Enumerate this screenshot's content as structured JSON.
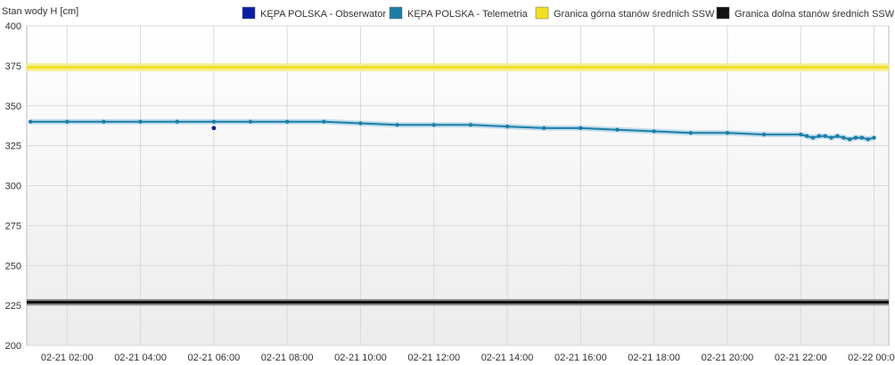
{
  "chart_data": {
    "type": "line",
    "ylabel": "Stan wody H [cm]",
    "ylim": [
      200,
      400
    ],
    "yticks": [
      200,
      225,
      250,
      275,
      300,
      325,
      350,
      375,
      400
    ],
    "xlim": [
      "02-21 00:54",
      "02-22 00:24"
    ],
    "xticks": [
      "02-21 02:00",
      "02-21 04:00",
      "02-21 06:00",
      "02-21 08:00",
      "02-21 10:00",
      "02-21 12:00",
      "02-21 14:00",
      "02-21 16:00",
      "02-21 18:00",
      "02-21 20:00",
      "02-21 22:00",
      "02-22 00:00"
    ],
    "grid": true,
    "legend_position": "top",
    "series": [
      {
        "name": "KĘPA POLSKA - Obserwator",
        "color": "#0a1fa8",
        "style": "points",
        "points": [
          [
            "02-21 06:00",
            336
          ]
        ]
      },
      {
        "name": "KĘPA POLSKA - Telemetria",
        "color": "#1a7fa8",
        "style": "line",
        "points": [
          [
            "02-21 01:00",
            340
          ],
          [
            "02-21 02:00",
            340
          ],
          [
            "02-21 03:00",
            340
          ],
          [
            "02-21 04:00",
            340
          ],
          [
            "02-21 05:00",
            340
          ],
          [
            "02-21 06:00",
            340
          ],
          [
            "02-21 07:00",
            340
          ],
          [
            "02-21 08:00",
            340
          ],
          [
            "02-21 09:00",
            340
          ],
          [
            "02-21 10:00",
            339
          ],
          [
            "02-21 11:00",
            338
          ],
          [
            "02-21 12:00",
            338
          ],
          [
            "02-21 13:00",
            338
          ],
          [
            "02-21 14:00",
            337
          ],
          [
            "02-21 15:00",
            336
          ],
          [
            "02-21 16:00",
            336
          ],
          [
            "02-21 17:00",
            335
          ],
          [
            "02-21 18:00",
            334
          ],
          [
            "02-21 19:00",
            333
          ],
          [
            "02-21 20:00",
            333
          ],
          [
            "02-21 21:00",
            332
          ],
          [
            "02-21 22:00",
            332
          ],
          [
            "02-21 22:10",
            331
          ],
          [
            "02-21 22:20",
            330
          ],
          [
            "02-21 22:30",
            331
          ],
          [
            "02-21 22:40",
            331
          ],
          [
            "02-21 22:50",
            330
          ],
          [
            "02-21 23:00",
            331
          ],
          [
            "02-21 23:10",
            330
          ],
          [
            "02-21 23:20",
            329
          ],
          [
            "02-21 23:30",
            330
          ],
          [
            "02-21 23:40",
            330
          ],
          [
            "02-21 23:50",
            329
          ],
          [
            "02-22 00:00",
            330
          ]
        ]
      },
      {
        "name": "Granica górna stanów średnich SSW",
        "color": "#f2df1e",
        "style": "hline",
        "value": 374
      },
      {
        "name": "Granica dolna stanów średnich SSW",
        "color": "#111111",
        "style": "hline",
        "value": 227
      }
    ]
  }
}
